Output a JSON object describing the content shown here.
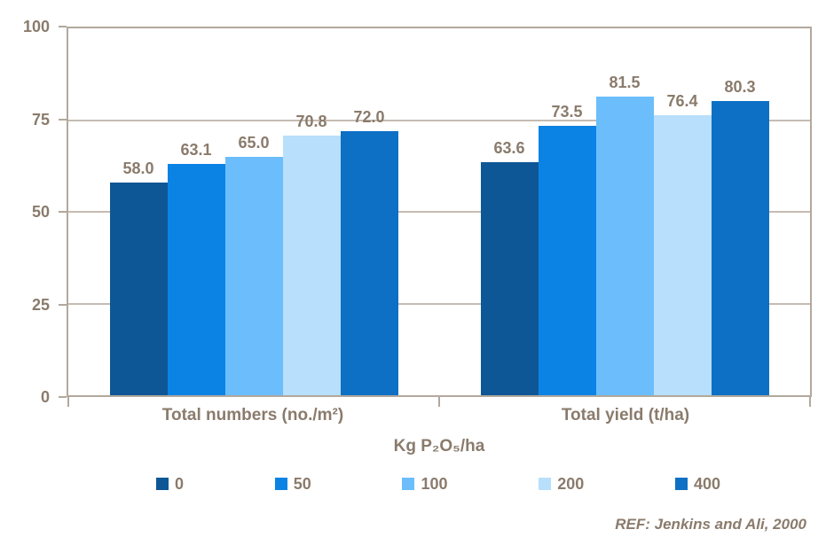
{
  "colors": {
    "text": "#8a7b6c",
    "axis": "#b2a89d",
    "gridline": "#c5bcb2",
    "background": "#ffffff"
  },
  "chart_data": {
    "type": "bar",
    "categories": [
      "Total numbers (no./m²)",
      "Total yield (t/ha)"
    ],
    "series": [
      {
        "name": "0",
        "color": "#0e5796",
        "values": [
          58.0,
          63.6
        ]
      },
      {
        "name": "50",
        "color": "#0b83e4",
        "values": [
          63.1,
          73.5
        ]
      },
      {
        "name": "100",
        "color": "#6bbefb",
        "values": [
          65.0,
          81.5
        ]
      },
      {
        "name": "200",
        "color": "#b8dffb",
        "values": [
          70.8,
          76.4
        ]
      },
      {
        "name": "400",
        "color": "#0d70c4",
        "values": [
          72.0,
          80.3
        ]
      }
    ],
    "xlabel": "Kg P₂O₅/ha",
    "ylabel": "",
    "ylim": [
      0,
      100
    ],
    "yticks": [
      0,
      25,
      50,
      75,
      100
    ],
    "grid": true,
    "value_label_decimals": 1,
    "legend_position": "bottom"
  },
  "footer": {
    "reference": "REF: Jenkins and Ali, 2000"
  }
}
